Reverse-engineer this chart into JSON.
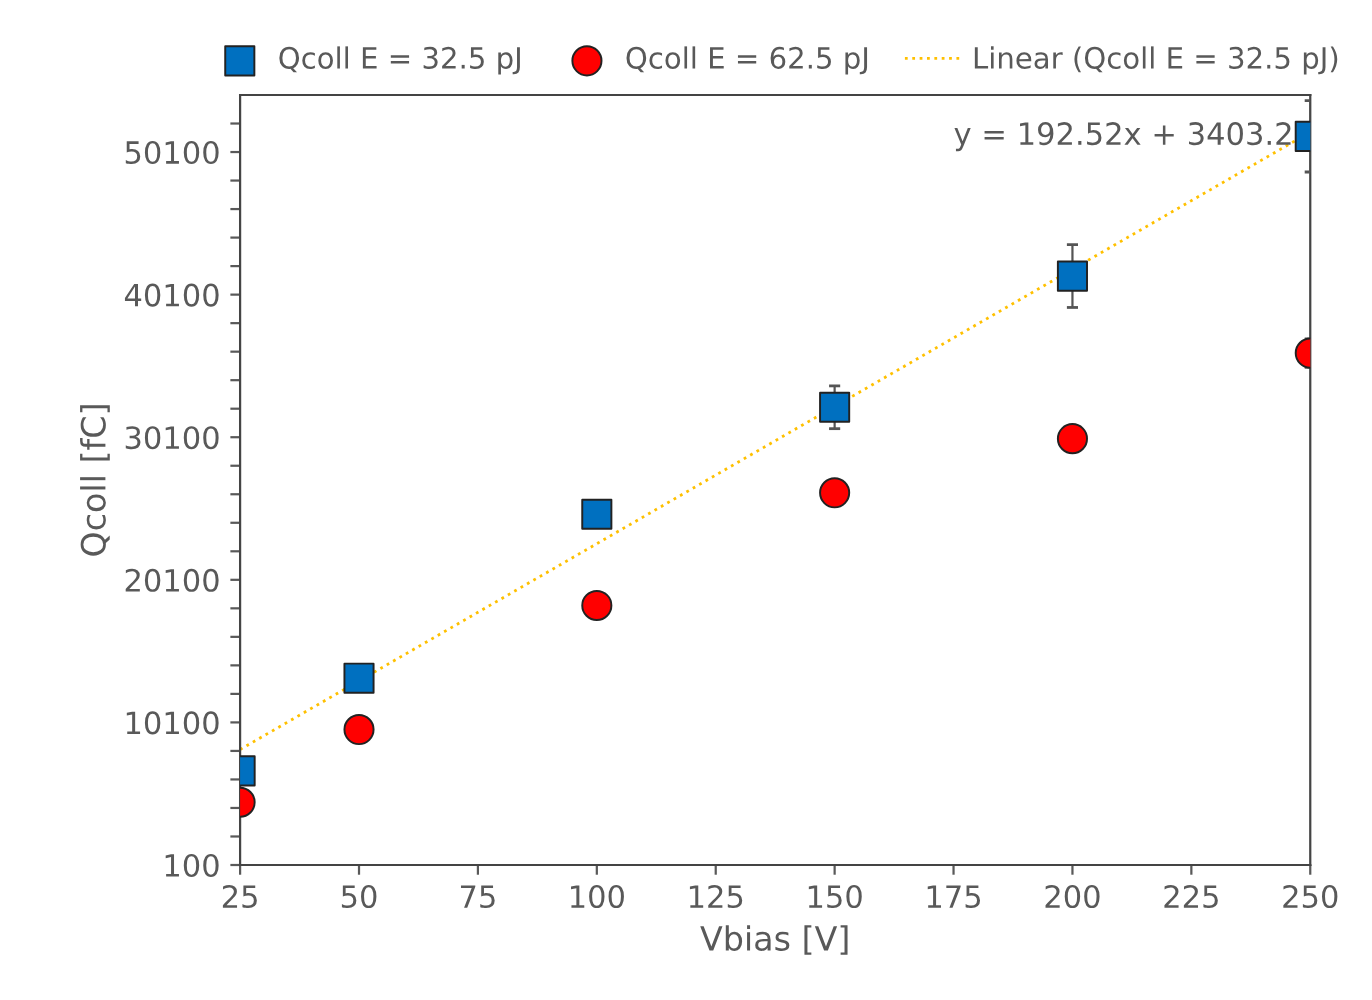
{
  "chart_data": {
    "type": "scatter",
    "xlabel": "Vbias [V]",
    "ylabel": "Qcoll [fC]",
    "xlim": [
      25,
      250
    ],
    "xticks": [
      25,
      50,
      75,
      100,
      125,
      150,
      175,
      200,
      225,
      250
    ],
    "ylim": [
      100,
      54100
    ],
    "yticks": [
      100,
      {
        "value": 2100,
        "label": null
      },
      {
        "value": 4100,
        "label": null
      },
      {
        "value": 6100,
        "label": null
      },
      {
        "value": 8100,
        "label": null
      },
      10100,
      {
        "value": 12100,
        "label": null
      },
      {
        "value": 14100,
        "label": null
      },
      {
        "value": 16100,
        "label": null
      },
      {
        "value": 18100,
        "label": null
      },
      20100,
      {
        "value": 22100,
        "label": null
      },
      {
        "value": 24100,
        "label": null
      },
      {
        "value": 26100,
        "label": null
      },
      {
        "value": 28100,
        "label": null
      },
      30100,
      {
        "value": 32100,
        "label": null
      },
      {
        "value": 34100,
        "label": null
      },
      {
        "value": 36100,
        "label": null
      },
      {
        "value": 38100,
        "label": null
      },
      40100,
      {
        "value": 42100,
        "label": null
      },
      {
        "value": 44100,
        "label": null
      },
      {
        "value": 46100,
        "label": null
      },
      {
        "value": 48100,
        "label": null
      },
      50100,
      {
        "value": 52100,
        "label": null
      }
    ],
    "grid": false,
    "legend": "top",
    "x": [
      25,
      50,
      100,
      150,
      200,
      250
    ],
    "series": [
      {
        "name": "Qcoll E = 32.5 pJ",
        "color": "#0070c0",
        "marker": "square",
        "values": [
          6700,
          13200,
          24700,
          32200,
          41400,
          51200
        ],
        "errors": [
          null,
          null,
          null,
          1500,
          2200,
          2500
        ]
      },
      {
        "name": "Qcoll E = 62.5 pJ",
        "color": "#ff0000",
        "marker": "circle",
        "values": [
          4500,
          9600,
          18300,
          26200,
          30000,
          36000
        ],
        "errors": [
          null,
          null,
          null,
          700,
          700,
          1000
        ]
      },
      {
        "name": "Linear (Qcoll E = 32.5 pJ)",
        "type": "line",
        "line_style": "dotted",
        "color": "#ffc000",
        "x": [
          25,
          250
        ],
        "values": [
          8200,
          51500
        ]
      }
    ],
    "annotations": [
      {
        "text": "y = 192.52x + 3403.2",
        "x": 250,
        "y": 51200
      }
    ]
  }
}
